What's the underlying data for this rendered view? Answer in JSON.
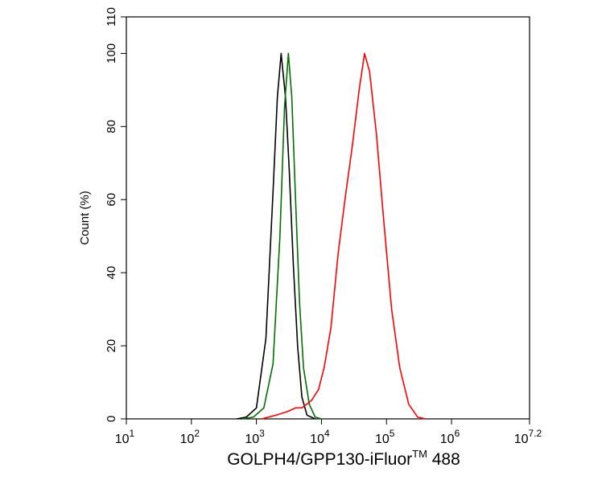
{
  "chart_data": {
    "type": "line",
    "xlabel": [
      "GOLPH4/GPP130-iFluor",
      "TM",
      " 488"
    ],
    "ylabel": "Count  (%)",
    "log_x": true,
    "xlim": [
      10,
      15848931.92
    ],
    "xticks": [
      {
        "value": 10,
        "label": "10",
        "superscript": "1"
      },
      {
        "value": 100,
        "label": "10",
        "superscript": "2"
      },
      {
        "value": 1000,
        "label": "10",
        "superscript": "3"
      },
      {
        "value": 10000,
        "label": "10",
        "superscript": "4"
      },
      {
        "value": 100000,
        "label": "10",
        "superscript": "5"
      },
      {
        "value": 1000000,
        "label": "10",
        "superscript": "6"
      },
      {
        "value": 15848931.92,
        "label": "10",
        "superscript": "7.2"
      }
    ],
    "ylim": [
      0,
      110
    ],
    "yticks": [
      0,
      20,
      40,
      60,
      80,
      100,
      110
    ],
    "series": [
      {
        "color": "#000000",
        "x": [
          500,
          700,
          1000,
          1400,
          1800,
          2100,
          2400,
          2800,
          3200,
          3700,
          4300,
          5000,
          6000,
          8000
        ],
        "values": [
          0,
          0.5,
          3,
          22,
          62,
          88,
          100,
          88,
          68,
          42,
          20,
          6,
          1,
          0
        ]
      },
      {
        "color": "#007000",
        "x": [
          600,
          900,
          1300,
          1800,
          2300,
          2700,
          3100,
          3500,
          4000,
          4600,
          5300,
          6500,
          8000,
          10000
        ],
        "values": [
          0,
          0.5,
          3,
          15,
          50,
          85,
          100,
          88,
          60,
          32,
          14,
          4,
          0.5,
          0
        ]
      },
      {
        "color": "#ff0000",
        "x": [
          1200,
          2000,
          3000,
          4000,
          5000,
          7000,
          9000,
          11000,
          14000,
          18000,
          23000,
          30000,
          38000,
          46000,
          55000,
          70000,
          90000,
          120000,
          160000,
          220000,
          300000,
          400000
        ],
        "values": [
          0,
          1,
          2,
          3,
          3,
          5,
          8,
          14,
          25,
          45,
          60,
          75,
          90,
          100,
          95,
          78,
          55,
          30,
          14,
          4,
          0.5,
          0
        ]
      }
    ]
  }
}
